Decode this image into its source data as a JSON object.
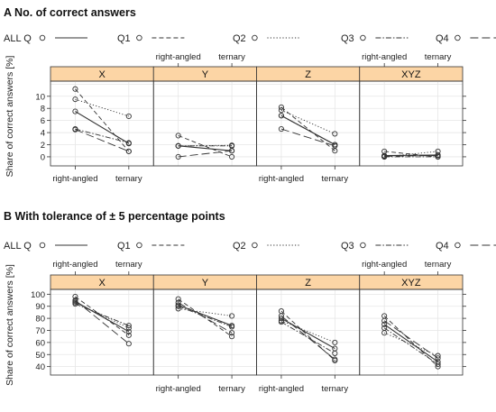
{
  "chart_data": [
    {
      "type": "line",
      "title": "A No. of correct answers",
      "ylabel": "Share of correct answers [%]",
      "categories": [
        "right-angled",
        "ternary"
      ],
      "legend": [
        {
          "label": "ALL Q",
          "dash": "solid"
        },
        {
          "label": "Q1",
          "dash": "dashed"
        },
        {
          "label": "Q2",
          "dash": "dotted"
        },
        {
          "label": "Q3",
          "dash": "dashdot"
        },
        {
          "label": "Q4",
          "dash": "longdash"
        }
      ],
      "ylim": [
        -1.5,
        12.5
      ],
      "yticks": [
        0,
        2,
        4,
        6,
        8,
        10
      ],
      "ygrid": [
        0,
        2,
        4,
        6,
        8,
        10,
        12
      ],
      "strip_color": "#fcd5a5",
      "panels": [
        {
          "name": "X",
          "series": [
            {
              "name": "ALL Q",
              "values": [
                7.5,
                2.2
              ]
            },
            {
              "name": "Q1",
              "values": [
                11.2,
                0.9
              ]
            },
            {
              "name": "Q2",
              "values": [
                9.5,
                6.7
              ]
            },
            {
              "name": "Q3",
              "values": [
                4.6,
                2.3
              ]
            },
            {
              "name": "Q4",
              "values": [
                4.5,
                0.9
              ]
            }
          ]
        },
        {
          "name": "Y",
          "series": [
            {
              "name": "ALL Q",
              "values": [
                1.8,
                1.0
              ]
            },
            {
              "name": "Q1",
              "values": [
                3.5,
                0.0
              ]
            },
            {
              "name": "Q2",
              "values": [
                1.8,
                1.9
              ]
            },
            {
              "name": "Q3",
              "values": [
                1.8,
                1.8
              ]
            },
            {
              "name": "Q4",
              "values": [
                0.0,
                1.0
              ]
            }
          ]
        },
        {
          "name": "Z",
          "series": [
            {
              "name": "ALL Q",
              "values": [
                6.8,
                2.0
              ]
            },
            {
              "name": "Q1",
              "values": [
                8.2,
                1.0
              ]
            },
            {
              "name": "Q2",
              "values": [
                7.7,
                3.8
              ]
            },
            {
              "name": "Q3",
              "values": [
                6.8,
                2.0
              ]
            },
            {
              "name": "Q4",
              "values": [
                4.6,
                1.8
              ]
            }
          ]
        },
        {
          "name": "XYZ",
          "series": [
            {
              "name": "ALL Q",
              "values": [
                0.2,
                0.3
              ]
            },
            {
              "name": "Q1",
              "values": [
                0.9,
                0.0
              ]
            },
            {
              "name": "Q2",
              "values": [
                0.0,
                0.9
              ]
            },
            {
              "name": "Q3",
              "values": [
                0.0,
                0.0
              ]
            },
            {
              "name": "Q4",
              "values": [
                0.1,
                0.2
              ]
            }
          ]
        }
      ]
    },
    {
      "type": "line",
      "title": "B With tolerance of ± 5 percentage points",
      "ylabel": "Share of correct answers [%]",
      "categories": [
        "right-angled",
        "ternary"
      ],
      "legend": [
        {
          "label": "ALL Q",
          "dash": "solid"
        },
        {
          "label": "Q1",
          "dash": "dashed"
        },
        {
          "label": "Q2",
          "dash": "dotted"
        },
        {
          "label": "Q3",
          "dash": "dashdot"
        },
        {
          "label": "Q4",
          "dash": "longdash"
        }
      ],
      "ylim": [
        33,
        104
      ],
      "yticks": [
        40,
        50,
        60,
        70,
        80,
        90,
        100
      ],
      "ygrid": [
        40,
        50,
        60,
        70,
        80,
        90,
        100
      ],
      "strip_color": "#fcd5a5",
      "panels": [
        {
          "name": "X",
          "series": [
            {
              "name": "ALL Q",
              "values": [
                94,
                69
              ]
            },
            {
              "name": "Q1",
              "values": [
                98,
                66
              ]
            },
            {
              "name": "Q2",
              "values": [
                93,
                72
              ]
            },
            {
              "name": "Q3",
              "values": [
                92,
                74
              ]
            },
            {
              "name": "Q4",
              "values": [
                95,
                59
              ]
            }
          ]
        },
        {
          "name": "Y",
          "series": [
            {
              "name": "ALL Q",
              "values": [
                91,
                74
              ]
            },
            {
              "name": "Q1",
              "values": [
                96,
                65
              ]
            },
            {
              "name": "Q2",
              "values": [
                88,
                82
              ]
            },
            {
              "name": "Q3",
              "values": [
                90,
                73
              ]
            },
            {
              "name": "Q4",
              "values": [
                93,
                68
              ]
            }
          ]
        },
        {
          "name": "Z",
          "series": [
            {
              "name": "ALL Q",
              "values": [
                80,
                55
              ]
            },
            {
              "name": "Q1",
              "values": [
                86,
                45
              ]
            },
            {
              "name": "Q2",
              "values": [
                78,
                60
              ]
            },
            {
              "name": "Q3",
              "values": [
                77,
                51
              ]
            },
            {
              "name": "Q4",
              "values": [
                82,
                46
              ]
            }
          ]
        },
        {
          "name": "XYZ",
          "series": [
            {
              "name": "ALL Q",
              "values": [
                75,
                44
              ]
            },
            {
              "name": "Q1",
              "values": [
                82,
                40
              ]
            },
            {
              "name": "Q2",
              "values": [
                68,
                49
              ]
            },
            {
              "name": "Q3",
              "values": [
                72,
                42
              ]
            },
            {
              "name": "Q4",
              "values": [
                78,
                47
              ]
            }
          ]
        }
      ]
    }
  ]
}
